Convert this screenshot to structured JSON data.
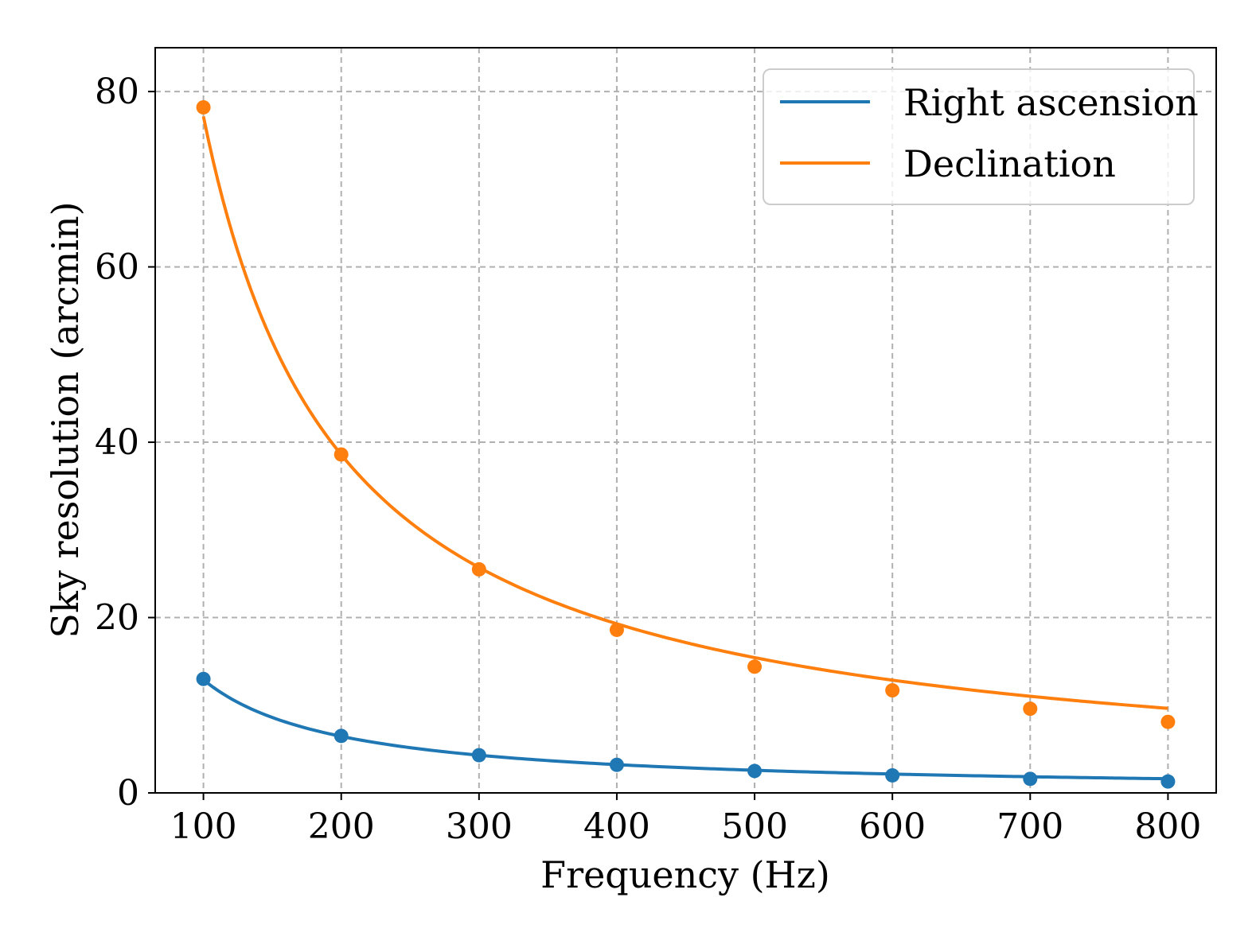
{
  "chart_data": {
    "type": "line",
    "title": "",
    "xlabel": "Frequency (Hz)",
    "ylabel": "Sky resolution (arcmin)",
    "xlim": [
      65,
      835
    ],
    "ylim": [
      0,
      85
    ],
    "grid": true,
    "legend_position": "top-right",
    "x_ticks": [
      100,
      200,
      300,
      400,
      500,
      600,
      700,
      800
    ],
    "x_tick_labels": [
      "100",
      "200",
      "300",
      "400",
      "500",
      "600",
      "700",
      "800"
    ],
    "y_ticks": [
      0,
      20,
      40,
      60,
      80
    ],
    "y_tick_labels": [
      "0",
      "20",
      "40",
      "60",
      "80"
    ],
    "series": [
      {
        "name": "Right ascension",
        "color": "#1f77b4",
        "x": [
          100,
          200,
          300,
          400,
          500,
          600,
          700,
          800
        ],
        "values": [
          13.0,
          6.5,
          4.3,
          3.2,
          2.5,
          2.0,
          1.6,
          1.3
        ]
      },
      {
        "name": "Declination",
        "color": "#ff7f0e",
        "x": [
          100,
          200,
          300,
          400,
          500,
          600,
          700,
          800
        ],
        "values": [
          78.2,
          38.6,
          25.5,
          18.6,
          14.4,
          11.7,
          9.6,
          8.1
        ]
      }
    ]
  }
}
